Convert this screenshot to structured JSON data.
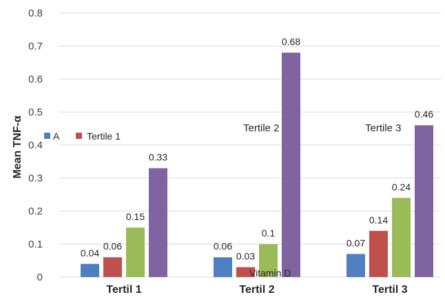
{
  "chart_data": {
    "type": "bar",
    "ylabel": "Mean TNF-α",
    "ylim": [
      0,
      0.8
    ],
    "yticks": [
      "0",
      "0.1",
      "0.2",
      "0.3",
      "0.4",
      "0.5",
      "0.6",
      "0.7",
      "0.8"
    ],
    "grid": true,
    "categories": [
      "Tertil 1",
      "Tertil 2",
      "Tertil 3"
    ],
    "series": [
      {
        "name": "A",
        "color": "#4f7fc0",
        "values": [
          0.04,
          0.06,
          0.07
        ],
        "labels": [
          "0.04",
          "0.06",
          "0.07"
        ]
      },
      {
        "name": "Tertile 1",
        "color": "#c0504d",
        "values": [
          0.06,
          0.03,
          0.14
        ],
        "labels": [
          "0.06",
          "0.03",
          "0.14"
        ]
      },
      {
        "color": "#9bbb59",
        "values": [
          0.15,
          0.1,
          0.24
        ],
        "labels": [
          "0.15",
          "0.1",
          "0.24"
        ]
      },
      {
        "color": "#8064a2",
        "values": [
          0.33,
          0.68,
          0.46
        ],
        "labels": [
          "0.33",
          "0.68",
          "0.46"
        ]
      }
    ],
    "legend": {
      "placement": "left-middle"
    },
    "annotations": [
      "Tertile 2",
      "Tertile 3",
      "Vitamin D"
    ]
  }
}
